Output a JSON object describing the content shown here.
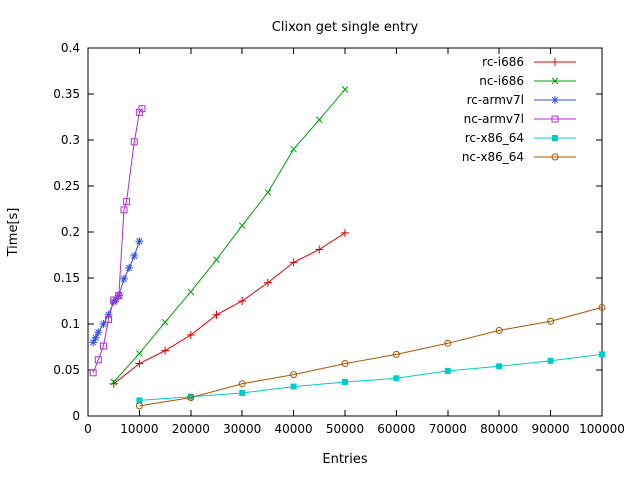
{
  "chart_data": {
    "type": "line",
    "title": "Clixon get single entry",
    "xlabel": "Entries",
    "ylabel": "Time[s]",
    "xlim": [
      0,
      100000
    ],
    "ylim": [
      0,
      0.4
    ],
    "grid": false,
    "legend_position": "top-right-inside",
    "background": "#ffffff",
    "border_color": "#000000",
    "xticks": [
      0,
      10000,
      20000,
      30000,
      40000,
      50000,
      60000,
      70000,
      80000,
      90000,
      100000
    ],
    "xtick_labels": [
      "0",
      "10000",
      "20000",
      "30000",
      "40000",
      "50000",
      "60000",
      "70000",
      "80000",
      "90000",
      "100000"
    ],
    "yticks": [
      0,
      0.05,
      0.1,
      0.15,
      0.2,
      0.25,
      0.3,
      0.35,
      0.4
    ],
    "ytick_labels": [
      "0",
      "0.05",
      "0.1",
      "0.15",
      "0.2",
      "0.25",
      "0.3",
      "0.35",
      "0.4"
    ],
    "series": [
      {
        "name": "rc-i686",
        "color": "#e00000",
        "marker": "plus",
        "x": [
          5000,
          10000,
          15000,
          20000,
          25000,
          30000,
          35000,
          40000,
          45000,
          50000
        ],
        "y": [
          0.035,
          0.057,
          0.071,
          0.088,
          0.11,
          0.125,
          0.145,
          0.167,
          0.181,
          0.199
        ]
      },
      {
        "name": "nc-i686",
        "color": "#00a000",
        "marker": "cross",
        "x": [
          5000,
          10000,
          15000,
          20000,
          25000,
          30000,
          35000,
          40000,
          45000,
          50000
        ],
        "y": [
          0.037,
          0.068,
          0.102,
          0.135,
          0.17,
          0.207,
          0.243,
          0.29,
          0.322,
          0.355
        ]
      },
      {
        "name": "rc-armv7l",
        "color": "#3352dd",
        "marker": "asterisk",
        "x": [
          1000,
          1500,
          2000,
          3000,
          4000,
          5000,
          5500,
          6000,
          7000,
          8000,
          9000,
          10000
        ],
        "y": [
          0.08,
          0.085,
          0.091,
          0.1,
          0.11,
          0.124,
          0.127,
          0.131,
          0.149,
          0.161,
          0.174,
          0.19
        ]
      },
      {
        "name": "nc-armv7l",
        "color": "#b02fd0",
        "marker": "square-open",
        "x": [
          1000,
          2000,
          3000,
          4000,
          5000,
          6000,
          7000,
          7500,
          9000,
          10000,
          10500
        ],
        "y": [
          0.047,
          0.061,
          0.076,
          0.105,
          0.126,
          0.131,
          0.224,
          0.233,
          0.298,
          0.33,
          0.334
        ]
      },
      {
        "name": "rc-x86_64",
        "color": "#00cccc",
        "marker": "square-filled",
        "x": [
          10000,
          20000,
          30000,
          40000,
          50000,
          60000,
          70000,
          80000,
          90000,
          100000
        ],
        "y": [
          0.017,
          0.021,
          0.025,
          0.032,
          0.037,
          0.041,
          0.049,
          0.054,
          0.06,
          0.067
        ]
      },
      {
        "name": "nc-x86_64",
        "color": "#aa5500",
        "marker": "circle-open",
        "x": [
          10000,
          20000,
          30000,
          40000,
          50000,
          60000,
          70000,
          80000,
          90000,
          100000
        ],
        "y": [
          0.011,
          0.02,
          0.035,
          0.045,
          0.057,
          0.067,
          0.079,
          0.093,
          0.103,
          0.118
        ]
      }
    ]
  }
}
